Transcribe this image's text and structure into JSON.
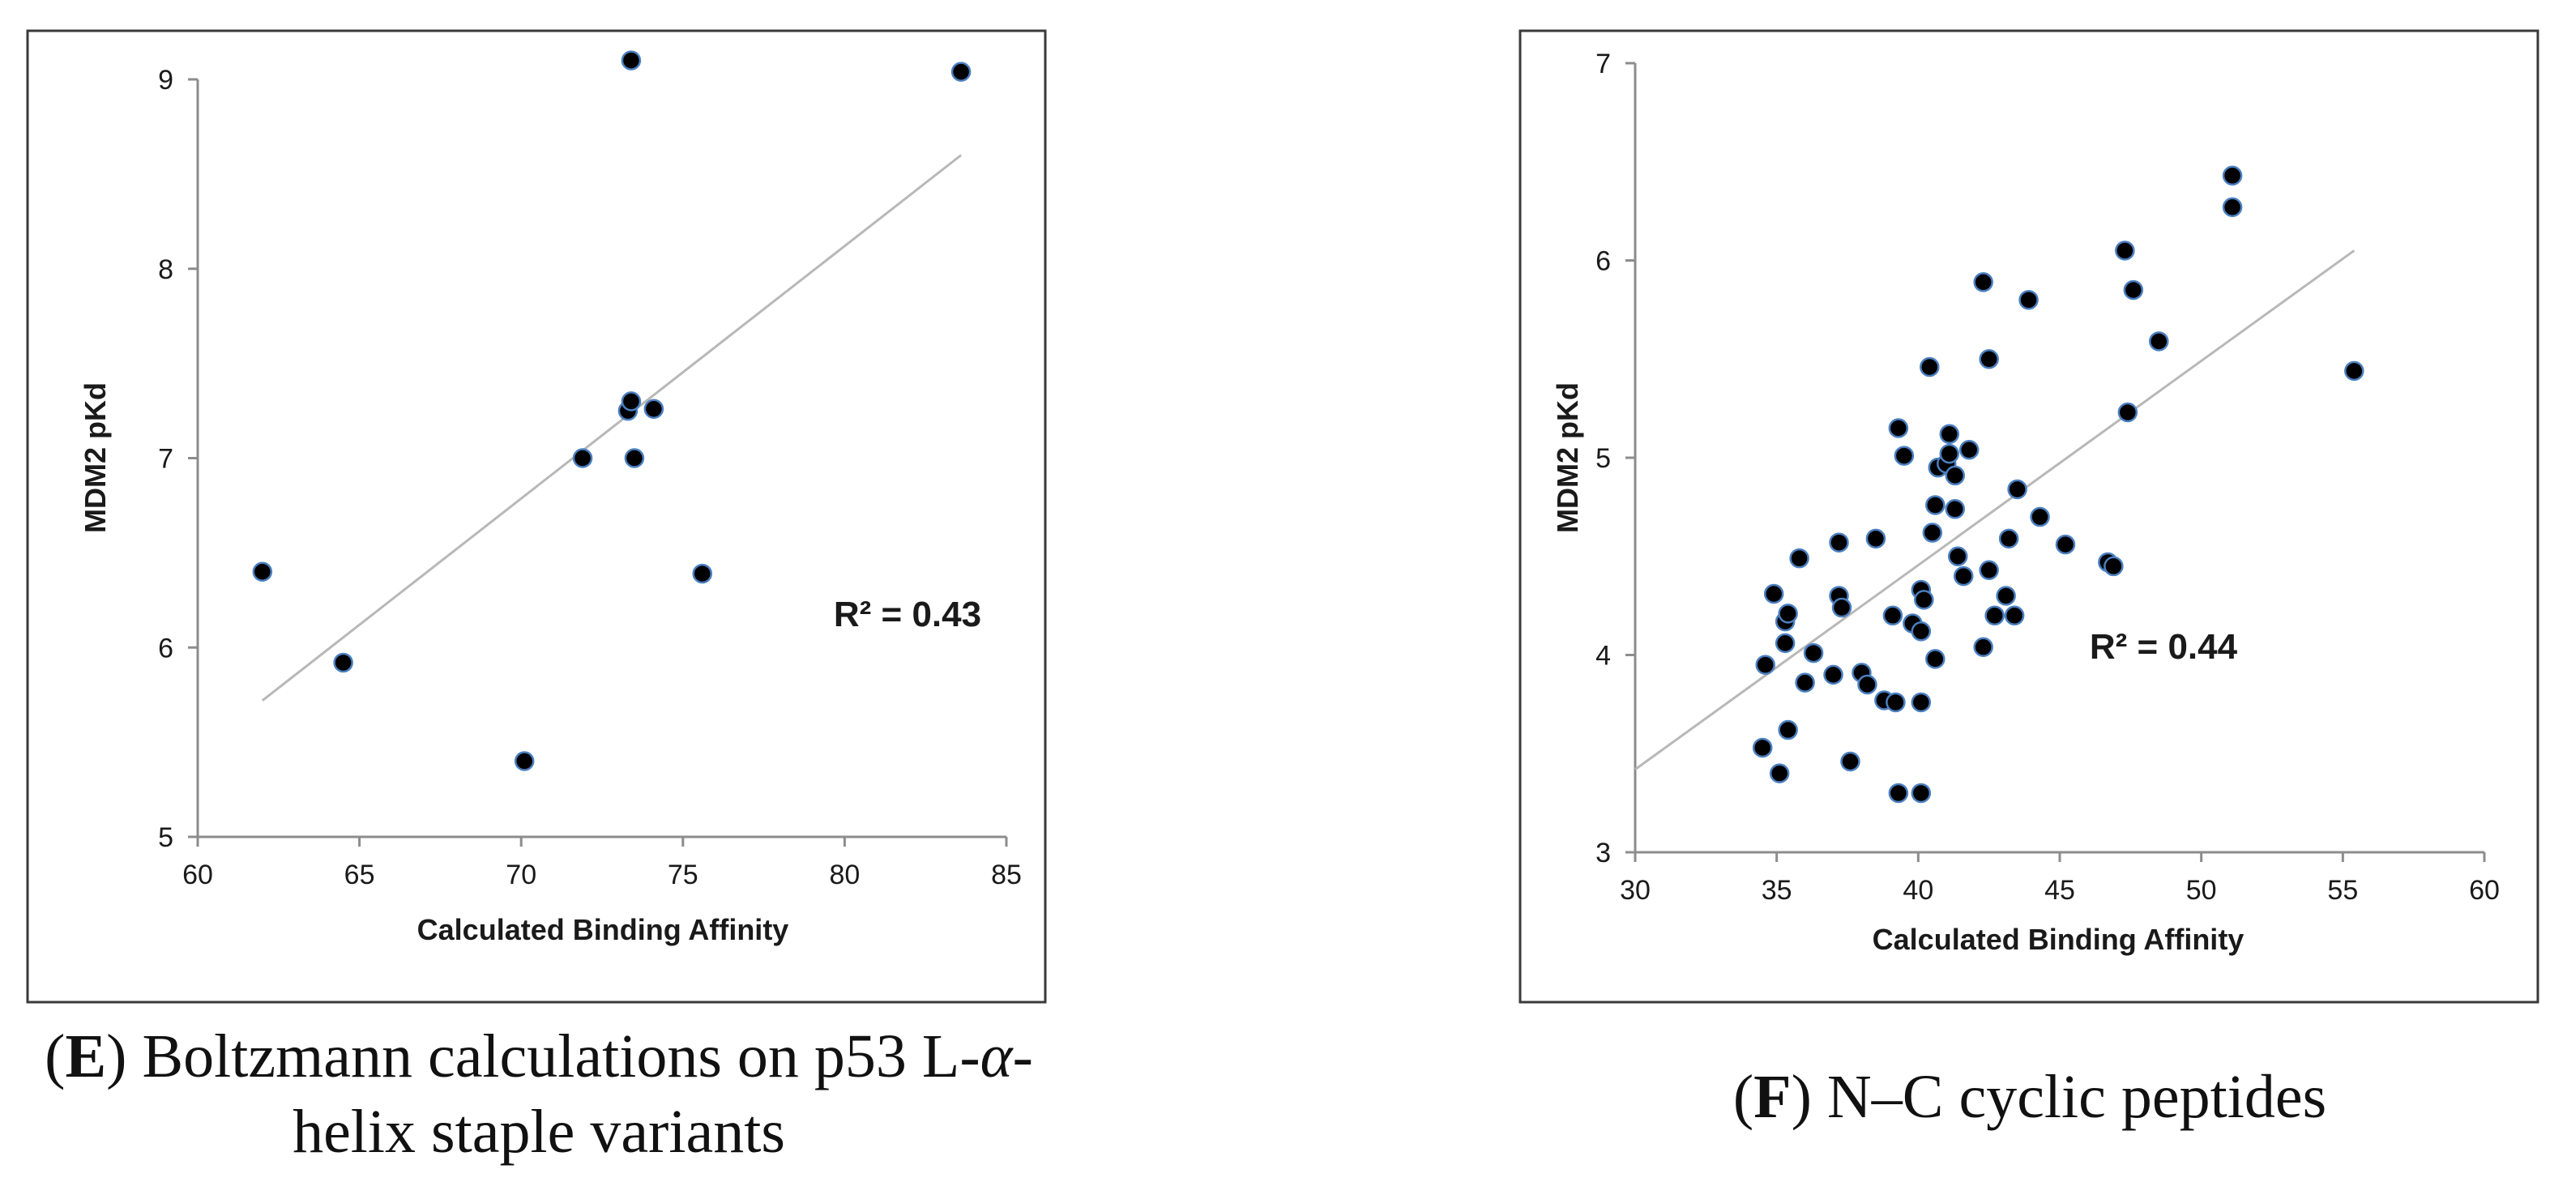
{
  "chart_data": [
    {
      "id": "E",
      "type": "scatter",
      "xlabel": "Calculated Binding Affinity",
      "ylabel": "MDM2 pKd",
      "xlim": [
        60,
        85
      ],
      "ylim": [
        5,
        9
      ],
      "xticks": [
        60,
        65,
        70,
        75,
        80,
        85
      ],
      "yticks": [
        5,
        6,
        7,
        8,
        9
      ],
      "annotation": "R² = 0.43",
      "trendline": [
        [
          62.0,
          5.72
        ],
        [
          83.6,
          8.6
        ]
      ],
      "points": [
        [
          62.0,
          6.4
        ],
        [
          64.5,
          5.92
        ],
        [
          70.1,
          5.4
        ],
        [
          71.9,
          7.0
        ],
        [
          73.3,
          7.25
        ],
        [
          73.4,
          7.3
        ],
        [
          73.5,
          7.0
        ],
        [
          74.1,
          7.26
        ],
        [
          75.6,
          6.39
        ],
        [
          73.4,
          9.1
        ],
        [
          83.6,
          9.04
        ]
      ]
    },
    {
      "id": "F",
      "type": "scatter",
      "xlabel": "Calculated Binding Affinity",
      "ylabel": "MDM2 pKd",
      "xlim": [
        30,
        60
      ],
      "ylim": [
        3,
        7
      ],
      "xticks": [
        30,
        35,
        40,
        45,
        50,
        55,
        60
      ],
      "yticks": [
        3,
        4,
        5,
        6,
        7
      ],
      "annotation": "R² = 0.44",
      "trendline": [
        [
          30.0,
          3.42
        ],
        [
          55.4,
          6.05
        ]
      ],
      "points": [
        [
          34.5,
          3.53
        ],
        [
          34.6,
          3.95
        ],
        [
          34.9,
          4.31
        ],
        [
          35.1,
          3.4
        ],
        [
          35.3,
          4.06
        ],
        [
          35.3,
          4.17
        ],
        [
          35.4,
          4.21
        ],
        [
          35.4,
          3.62
        ],
        [
          35.8,
          4.49
        ],
        [
          36.0,
          3.86
        ],
        [
          36.3,
          4.01
        ],
        [
          37.0,
          3.9
        ],
        [
          37.2,
          4.3
        ],
        [
          37.2,
          4.57
        ],
        [
          37.3,
          4.24
        ],
        [
          37.6,
          3.46
        ],
        [
          38.0,
          3.91
        ],
        [
          38.2,
          3.85
        ],
        [
          38.5,
          4.59
        ],
        [
          38.8,
          3.77
        ],
        [
          39.1,
          4.2
        ],
        [
          39.2,
          3.76
        ],
        [
          39.3,
          5.15
        ],
        [
          39.3,
          3.3
        ],
        [
          39.5,
          5.01
        ],
        [
          39.8,
          4.16
        ],
        [
          40.1,
          4.12
        ],
        [
          40.1,
          4.33
        ],
        [
          40.1,
          3.76
        ],
        [
          40.1,
          3.3
        ],
        [
          40.2,
          4.28
        ],
        [
          40.4,
          5.46
        ],
        [
          40.5,
          4.62
        ],
        [
          40.6,
          3.98
        ],
        [
          40.6,
          4.76
        ],
        [
          40.7,
          4.95
        ],
        [
          41.0,
          4.97
        ],
        [
          41.1,
          5.12
        ],
        [
          41.1,
          5.02
        ],
        [
          41.3,
          4.91
        ],
        [
          41.3,
          4.74
        ],
        [
          41.4,
          4.5
        ],
        [
          41.6,
          4.4
        ],
        [
          41.8,
          5.04
        ],
        [
          42.3,
          5.89
        ],
        [
          42.3,
          4.04
        ],
        [
          42.5,
          5.5
        ],
        [
          42.5,
          4.43
        ],
        [
          42.7,
          4.2
        ],
        [
          43.1,
          4.3
        ],
        [
          43.2,
          4.59
        ],
        [
          43.4,
          4.2
        ],
        [
          43.5,
          4.84
        ],
        [
          43.9,
          5.8
        ],
        [
          44.3,
          4.7
        ],
        [
          45.2,
          4.56
        ],
        [
          46.7,
          4.47
        ],
        [
          46.9,
          4.45
        ],
        [
          47.3,
          6.05
        ],
        [
          47.4,
          5.23
        ],
        [
          47.6,
          5.85
        ],
        [
          48.5,
          5.59
        ],
        [
          51.1,
          6.43
        ],
        [
          51.1,
          6.27
        ],
        [
          55.4,
          5.44
        ]
      ]
    }
  ],
  "captions": {
    "e": {
      "letter": "E",
      "text": " Boltzmann calculations on p53 L-",
      "alpha": "α",
      "text_end": "-",
      "line2": "helix staple variants"
    },
    "f": {
      "letter": "F",
      "text": " N–C cyclic peptides"
    }
  }
}
